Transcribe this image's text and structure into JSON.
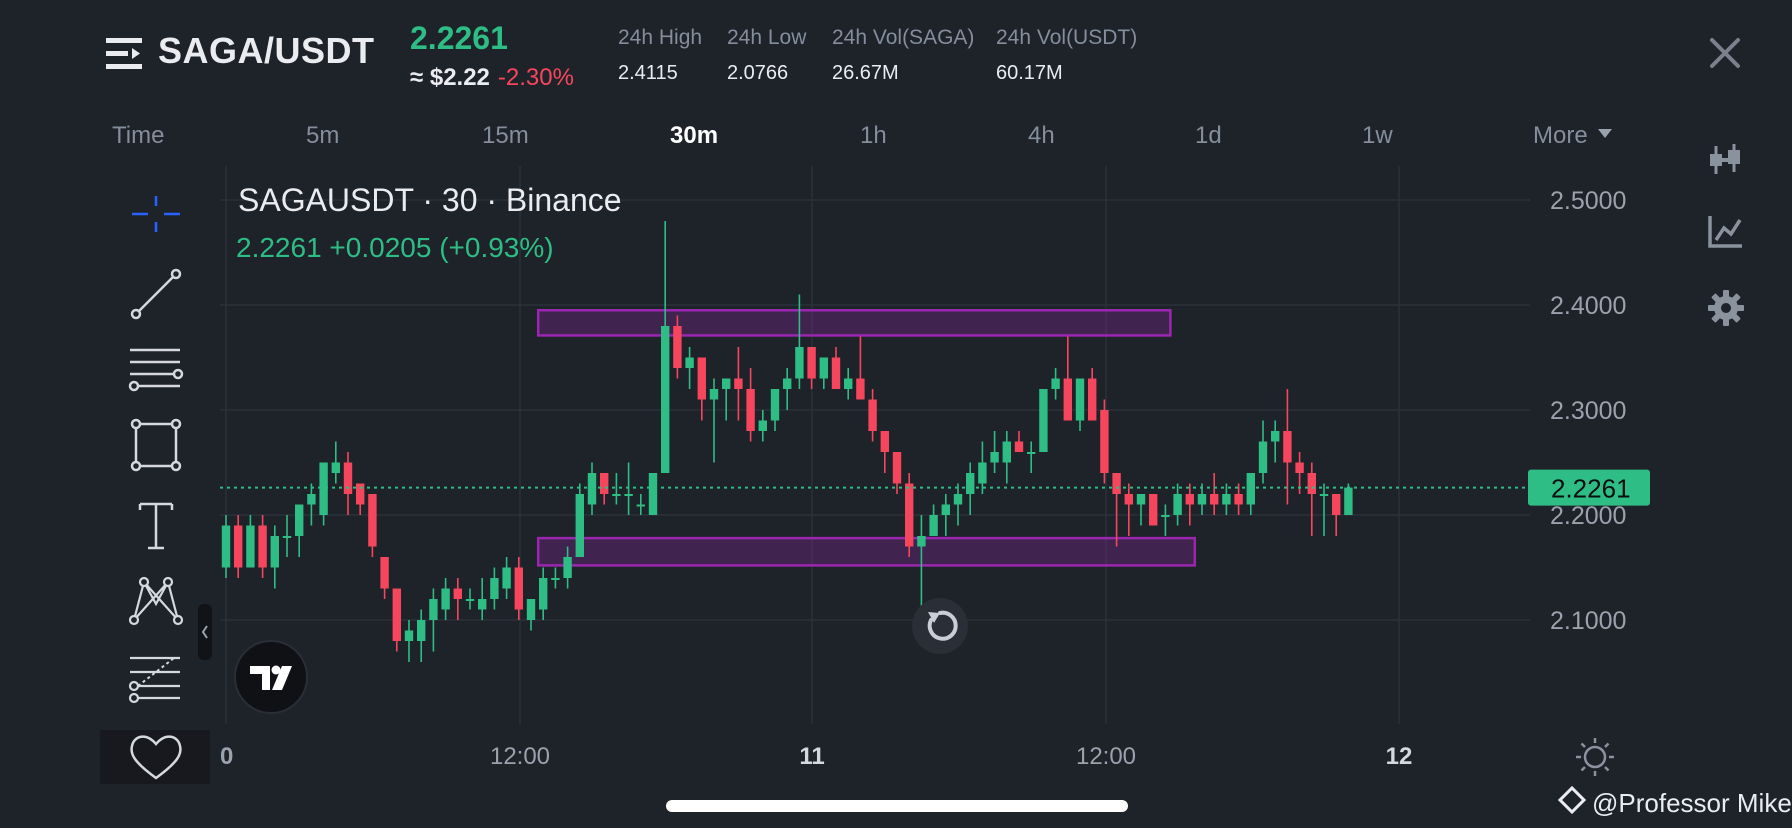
{
  "header": {
    "pair": "SAGA/USDT",
    "last_price": "2.2261",
    "approx_usd": "≈ $2.22",
    "change_pct": "-2.30%",
    "stats": [
      {
        "label": "24h High",
        "value": "2.4115"
      },
      {
        "label": "24h Low",
        "value": "2.0766"
      },
      {
        "label": "24h Vol(SAGA)",
        "value": "26.67M"
      },
      {
        "label": "24h Vol(USDT)",
        "value": "60.17M"
      }
    ]
  },
  "timeframes": {
    "items": [
      "Time",
      "5m",
      "15m",
      "30m",
      "1h",
      "4h",
      "1d",
      "1w"
    ],
    "active": "30m",
    "more": "More"
  },
  "legend": {
    "title": "SAGAUSDT · 30 · Binance",
    "values": "2.2261  +0.0205 (+0.93%)"
  },
  "colors": {
    "up": "#2ebd85",
    "down": "#f6465d",
    "zone": "#9b27b0",
    "accent": "#2962ff"
  },
  "tools": [
    "crosshair-icon",
    "trendline-icon",
    "horizontal-lines-icon",
    "rectangle-icon",
    "text-icon",
    "pattern-icon",
    "fib-icon",
    "favorites-heart-icon"
  ],
  "right_icons": [
    "candlestick-type-icon",
    "indicators-icon",
    "settings-gear-icon"
  ],
  "watermark": "@Professor Mike",
  "chart_data": {
    "type": "candlestick",
    "symbol": "SAGAUSDT",
    "interval": "30",
    "exchange": "Binance",
    "y_ticks": [
      "2.5000",
      "2.4000",
      "2.3000",
      "2.2000",
      "2.1000"
    ],
    "ylim": [
      2.0,
      2.5
    ],
    "x_ticks": [
      "0",
      "12:00",
      "11",
      "12:00",
      "12"
    ],
    "current_price_label": "2.2261",
    "current_price": 2.2261,
    "zones": [
      {
        "from_index": 26,
        "to_index": 77,
        "low": 2.371,
        "high": 2.395
      },
      {
        "from_index": 26,
        "to_index": 79,
        "low": 2.152,
        "high": 2.178
      }
    ],
    "candles": [
      {
        "o": 2.15,
        "h": 2.2,
        "l": 2.14,
        "c": 2.19
      },
      {
        "o": 2.19,
        "h": 2.2,
        "l": 2.14,
        "c": 2.15
      },
      {
        "o": 2.15,
        "h": 2.2,
        "l": 2.15,
        "c": 2.19
      },
      {
        "o": 2.19,
        "h": 2.2,
        "l": 2.14,
        "c": 2.15
      },
      {
        "o": 2.15,
        "h": 2.19,
        "l": 2.13,
        "c": 2.18
      },
      {
        "o": 2.18,
        "h": 2.2,
        "l": 2.16,
        "c": 2.18
      },
      {
        "o": 2.18,
        "h": 2.21,
        "l": 2.16,
        "c": 2.21
      },
      {
        "o": 2.21,
        "h": 2.23,
        "l": 2.19,
        "c": 2.22
      },
      {
        "o": 2.2,
        "h": 2.25,
        "l": 2.19,
        "c": 2.25
      },
      {
        "o": 2.24,
        "h": 2.27,
        "l": 2.23,
        "c": 2.25
      },
      {
        "o": 2.25,
        "h": 2.26,
        "l": 2.2,
        "c": 2.22
      },
      {
        "o": 2.23,
        "h": 2.23,
        "l": 2.2,
        "c": 2.21
      },
      {
        "o": 2.22,
        "h": 2.22,
        "l": 2.16,
        "c": 2.17
      },
      {
        "o": 2.16,
        "h": 2.16,
        "l": 2.12,
        "c": 2.13
      },
      {
        "o": 2.13,
        "h": 2.13,
        "l": 2.07,
        "c": 2.08
      },
      {
        "o": 2.08,
        "h": 2.1,
        "l": 2.06,
        "c": 2.09
      },
      {
        "o": 2.08,
        "h": 2.11,
        "l": 2.06,
        "c": 2.1
      },
      {
        "o": 2.1,
        "h": 2.13,
        "l": 2.07,
        "c": 2.12
      },
      {
        "o": 2.11,
        "h": 2.14,
        "l": 2.1,
        "c": 2.13
      },
      {
        "o": 2.13,
        "h": 2.14,
        "l": 2.1,
        "c": 2.12
      },
      {
        "o": 2.12,
        "h": 2.13,
        "l": 2.11,
        "c": 2.12
      },
      {
        "o": 2.11,
        "h": 2.14,
        "l": 2.1,
        "c": 2.12
      },
      {
        "o": 2.12,
        "h": 2.15,
        "l": 2.11,
        "c": 2.14
      },
      {
        "o": 2.13,
        "h": 2.16,
        "l": 2.12,
        "c": 2.15
      },
      {
        "o": 2.15,
        "h": 2.16,
        "l": 2.1,
        "c": 2.11
      },
      {
        "o": 2.1,
        "h": 2.12,
        "l": 2.09,
        "c": 2.12
      },
      {
        "o": 2.11,
        "h": 2.15,
        "l": 2.1,
        "c": 2.14
      },
      {
        "o": 2.14,
        "h": 2.15,
        "l": 2.13,
        "c": 2.14
      },
      {
        "o": 2.14,
        "h": 2.17,
        "l": 2.13,
        "c": 2.16
      },
      {
        "o": 2.16,
        "h": 2.23,
        "l": 2.16,
        "c": 2.22
      },
      {
        "o": 2.21,
        "h": 2.25,
        "l": 2.2,
        "c": 2.24
      },
      {
        "o": 2.24,
        "h": 2.24,
        "l": 2.21,
        "c": 2.22
      },
      {
        "o": 2.22,
        "h": 2.24,
        "l": 2.21,
        "c": 2.22
      },
      {
        "o": 2.22,
        "h": 2.25,
        "l": 2.2,
        "c": 2.22
      },
      {
        "o": 2.21,
        "h": 2.22,
        "l": 2.2,
        "c": 2.21
      },
      {
        "o": 2.2,
        "h": 2.24,
        "l": 2.2,
        "c": 2.24
      },
      {
        "o": 2.24,
        "h": 2.48,
        "l": 2.24,
        "c": 2.38
      },
      {
        "o": 2.38,
        "h": 2.39,
        "l": 2.33,
        "c": 2.34
      },
      {
        "o": 2.34,
        "h": 2.36,
        "l": 2.32,
        "c": 2.35
      },
      {
        "o": 2.35,
        "h": 2.35,
        "l": 2.29,
        "c": 2.31
      },
      {
        "o": 2.31,
        "h": 2.33,
        "l": 2.25,
        "c": 2.32
      },
      {
        "o": 2.32,
        "h": 2.33,
        "l": 2.29,
        "c": 2.33
      },
      {
        "o": 2.33,
        "h": 2.36,
        "l": 2.29,
        "c": 2.32
      },
      {
        "o": 2.32,
        "h": 2.34,
        "l": 2.27,
        "c": 2.28
      },
      {
        "o": 2.28,
        "h": 2.3,
        "l": 2.27,
        "c": 2.29
      },
      {
        "o": 2.29,
        "h": 2.32,
        "l": 2.28,
        "c": 2.32
      },
      {
        "o": 2.32,
        "h": 2.34,
        "l": 2.3,
        "c": 2.33
      },
      {
        "o": 2.33,
        "h": 2.41,
        "l": 2.32,
        "c": 2.36
      },
      {
        "o": 2.36,
        "h": 2.36,
        "l": 2.32,
        "c": 2.33
      },
      {
        "o": 2.33,
        "h": 2.35,
        "l": 2.32,
        "c": 2.35
      },
      {
        "o": 2.35,
        "h": 2.36,
        "l": 2.32,
        "c": 2.32
      },
      {
        "o": 2.32,
        "h": 2.34,
        "l": 2.31,
        "c": 2.33
      },
      {
        "o": 2.33,
        "h": 2.37,
        "l": 2.31,
        "c": 2.31
      },
      {
        "o": 2.31,
        "h": 2.32,
        "l": 2.27,
        "c": 2.28
      },
      {
        "o": 2.28,
        "h": 2.28,
        "l": 2.24,
        "c": 2.26
      },
      {
        "o": 2.26,
        "h": 2.26,
        "l": 2.22,
        "c": 2.23
      },
      {
        "o": 2.23,
        "h": 2.24,
        "l": 2.16,
        "c": 2.17
      },
      {
        "o": 2.17,
        "h": 2.2,
        "l": 2.08,
        "c": 2.18
      },
      {
        "o": 2.18,
        "h": 2.21,
        "l": 2.18,
        "c": 2.2
      },
      {
        "o": 2.2,
        "h": 2.22,
        "l": 2.18,
        "c": 2.21
      },
      {
        "o": 2.21,
        "h": 2.23,
        "l": 2.19,
        "c": 2.22
      },
      {
        "o": 2.22,
        "h": 2.25,
        "l": 2.2,
        "c": 2.24
      },
      {
        "o": 2.23,
        "h": 2.27,
        "l": 2.22,
        "c": 2.25
      },
      {
        "o": 2.25,
        "h": 2.28,
        "l": 2.24,
        "c": 2.26
      },
      {
        "o": 2.25,
        "h": 2.28,
        "l": 2.23,
        "c": 2.27
      },
      {
        "o": 2.27,
        "h": 2.28,
        "l": 2.26,
        "c": 2.26
      },
      {
        "o": 2.26,
        "h": 2.27,
        "l": 2.24,
        "c": 2.26
      },
      {
        "o": 2.26,
        "h": 2.32,
        "l": 2.26,
        "c": 2.32
      },
      {
        "o": 2.32,
        "h": 2.34,
        "l": 2.31,
        "c": 2.33
      },
      {
        "o": 2.33,
        "h": 2.37,
        "l": 2.29,
        "c": 2.29
      },
      {
        "o": 2.29,
        "h": 2.33,
        "l": 2.28,
        "c": 2.33
      },
      {
        "o": 2.33,
        "h": 2.34,
        "l": 2.29,
        "c": 2.29
      },
      {
        "o": 2.3,
        "h": 2.31,
        "l": 2.23,
        "c": 2.24
      },
      {
        "o": 2.24,
        "h": 2.24,
        "l": 2.17,
        "c": 2.22
      },
      {
        "o": 2.22,
        "h": 2.23,
        "l": 2.18,
        "c": 2.21
      },
      {
        "o": 2.21,
        "h": 2.22,
        "l": 2.19,
        "c": 2.22
      },
      {
        "o": 2.22,
        "h": 2.22,
        "l": 2.19,
        "c": 2.19
      },
      {
        "o": 2.2,
        "h": 2.21,
        "l": 2.18,
        "c": 2.2
      },
      {
        "o": 2.2,
        "h": 2.23,
        "l": 2.19,
        "c": 2.22
      },
      {
        "o": 2.22,
        "h": 2.23,
        "l": 2.19,
        "c": 2.21
      },
      {
        "o": 2.21,
        "h": 2.23,
        "l": 2.2,
        "c": 2.22
      },
      {
        "o": 2.22,
        "h": 2.24,
        "l": 2.2,
        "c": 2.21
      },
      {
        "o": 2.21,
        "h": 2.23,
        "l": 2.2,
        "c": 2.22
      },
      {
        "o": 2.22,
        "h": 2.23,
        "l": 2.2,
        "c": 2.21
      },
      {
        "o": 2.21,
        "h": 2.24,
        "l": 2.2,
        "c": 2.24
      },
      {
        "o": 2.24,
        "h": 2.29,
        "l": 2.23,
        "c": 2.27
      },
      {
        "o": 2.27,
        "h": 2.29,
        "l": 2.25,
        "c": 2.28
      },
      {
        "o": 2.28,
        "h": 2.32,
        "l": 2.21,
        "c": 2.25
      },
      {
        "o": 2.25,
        "h": 2.26,
        "l": 2.22,
        "c": 2.24
      },
      {
        "o": 2.24,
        "h": 2.25,
        "l": 2.18,
        "c": 2.22
      },
      {
        "o": 2.22,
        "h": 2.23,
        "l": 2.18,
        "c": 2.22
      },
      {
        "o": 2.22,
        "h": 2.22,
        "l": 2.18,
        "c": 2.2
      },
      {
        "o": 2.2,
        "h": 2.23,
        "l": 2.2,
        "c": 2.2261
      }
    ]
  }
}
